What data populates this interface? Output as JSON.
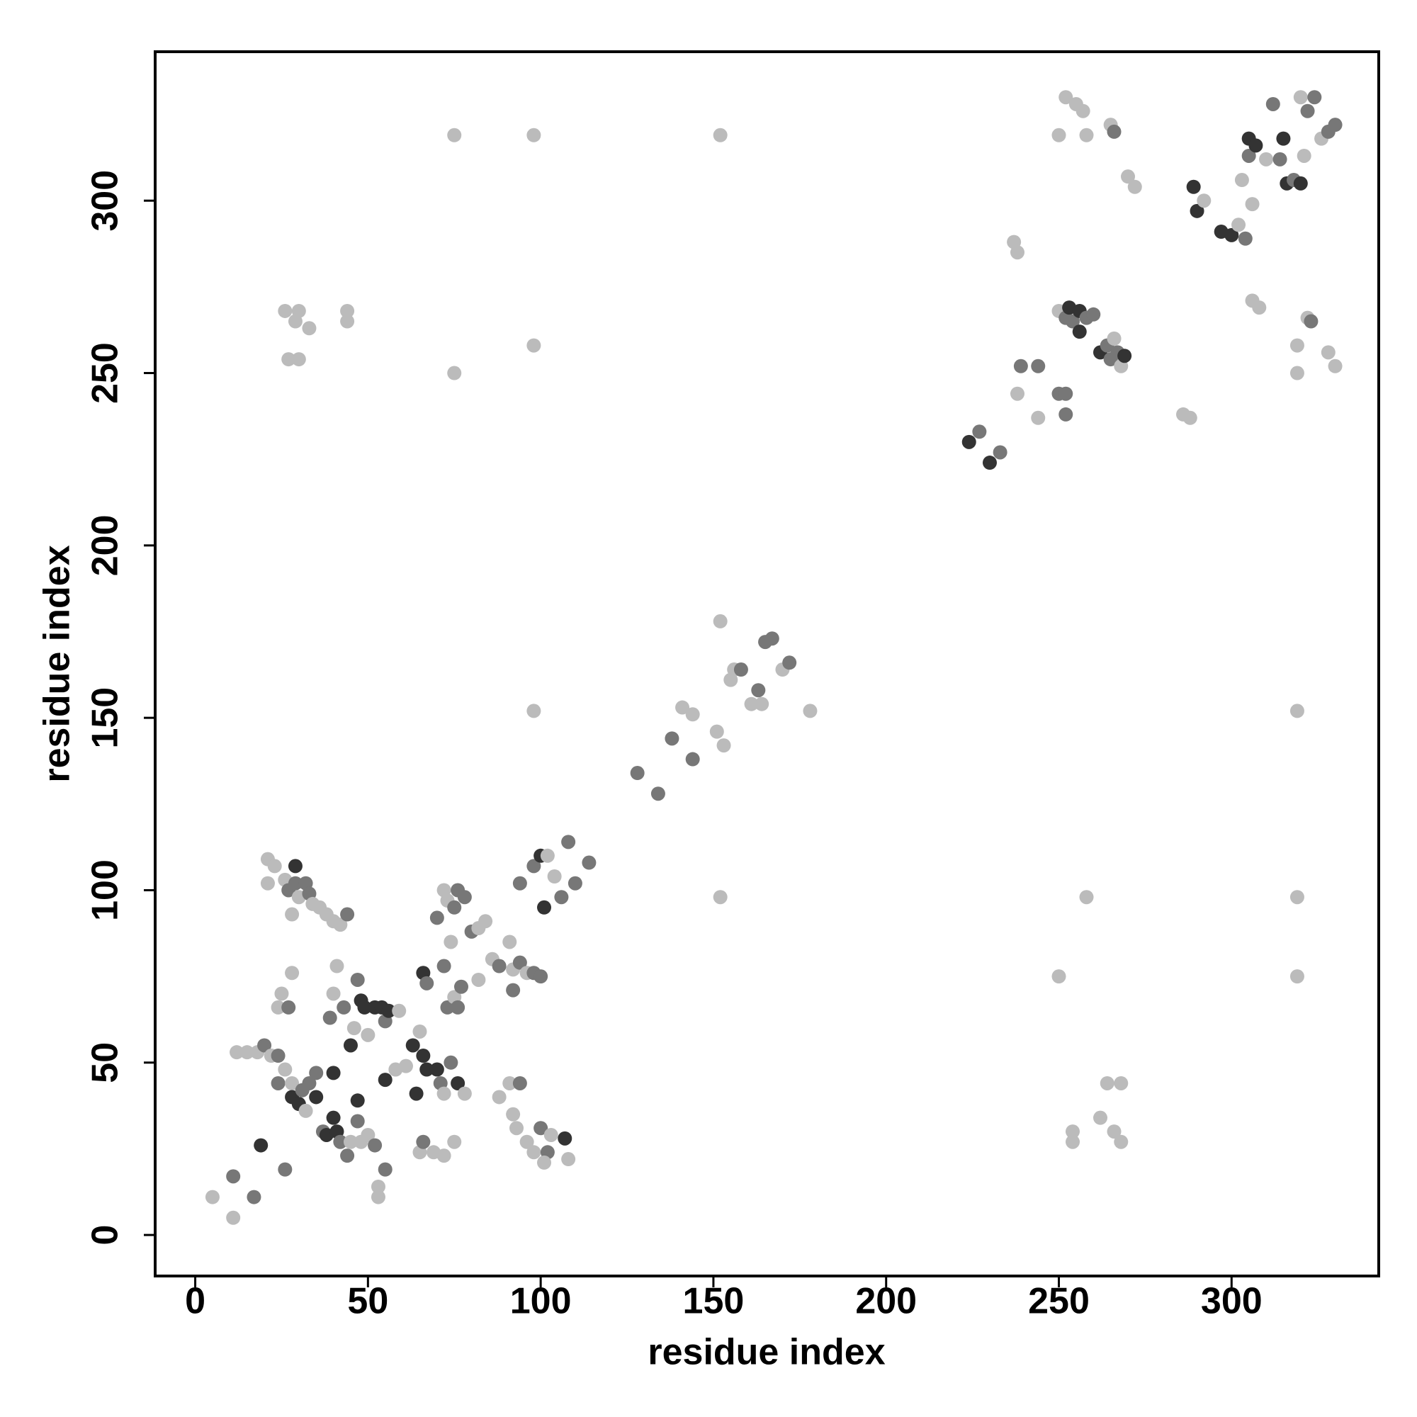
{
  "chart_data": {
    "type": "scatter",
    "x_label": "residue index",
    "y_label": "residue index",
    "xlim": [
      -11.6,
      342.6
    ],
    "ylim": [
      -11.9,
      343.2
    ],
    "xticks": [
      0,
      50,
      100,
      150,
      200,
      250,
      300
    ],
    "yticks": [
      0,
      50,
      100,
      150,
      200,
      250,
      300
    ],
    "x": [
      5,
      11,
      11,
      17,
      19,
      26,
      12,
      15,
      18,
      20,
      22,
      24,
      24,
      26,
      28,
      28,
      30,
      31,
      32,
      33,
      35,
      35,
      24,
      25,
      27,
      28,
      21,
      21,
      23,
      26,
      27,
      29,
      29,
      30,
      32,
      33,
      34,
      36,
      38,
      40,
      42,
      44,
      28,
      37,
      38,
      40,
      41,
      42,
      44,
      45,
      47,
      48,
      50,
      52,
      53,
      53,
      55,
      39,
      40,
      41,
      43,
      45,
      46,
      47,
      48,
      49,
      50,
      52,
      54,
      55,
      56,
      59,
      40,
      47,
      55,
      58,
      61,
      63,
      64,
      65,
      66,
      67,
      70,
      71,
      72,
      74,
      76,
      78,
      65,
      66,
      69,
      72,
      75,
      66,
      67,
      72,
      73,
      75,
      76,
      77,
      70,
      72,
      73,
      75,
      76,
      78,
      80,
      82,
      84,
      74,
      82,
      86,
      88,
      91,
      92,
      94,
      96,
      98,
      100,
      92,
      88,
      91,
      92,
      93,
      94,
      96,
      98,
      100,
      102,
      103,
      107,
      108,
      101,
      94,
      98,
      100,
      101,
      102,
      104,
      106,
      108,
      110,
      114,
      128,
      134,
      138,
      144,
      141,
      144,
      151,
      153,
      152,
      155,
      156,
      158,
      161,
      163,
      164,
      165,
      167,
      170,
      172,
      178,
      98,
      152,
      250,
      258,
      319,
      319,
      319,
      254,
      254,
      262,
      264,
      266,
      268,
      268,
      26,
      30,
      29,
      33,
      27,
      30,
      44,
      44,
      75,
      98,
      75,
      98,
      152,
      224,
      227,
      230,
      233,
      238,
      239,
      244,
      244,
      250,
      252,
      252,
      237,
      238,
      250,
      252,
      253,
      254,
      256,
      256,
      258,
      260,
      262,
      264,
      265,
      266,
      267,
      268,
      269,
      250,
      252,
      255,
      257,
      258,
      265,
      266,
      270,
      272,
      286,
      288,
      289,
      290,
      292,
      297,
      300,
      302,
      303,
      304,
      305,
      305,
      306,
      307,
      306,
      308,
      310,
      312,
      314,
      315,
      316,
      318,
      319,
      319,
      320,
      322,
      321,
      322,
      323,
      324,
      326,
      328,
      330,
      328,
      330,
      320
    ],
    "values": [
      11,
      5,
      17,
      11,
      26,
      19,
      53,
      53,
      53,
      55,
      52,
      52,
      44,
      48,
      44,
      40,
      38,
      42,
      36,
      44,
      47,
      40,
      66,
      70,
      66,
      76,
      109,
      102,
      107,
      103,
      100,
      107,
      102,
      98,
      102,
      99,
      96,
      95,
      93,
      91,
      90,
      93,
      93,
      30,
      29,
      34,
      30,
      27,
      23,
      27,
      33,
      27,
      29,
      26,
      14,
      11,
      19,
      63,
      70,
      78,
      66,
      55,
      60,
      74,
      68,
      66,
      58,
      66,
      66,
      62,
      65,
      65,
      47,
      39,
      45,
      48,
      49,
      55,
      41,
      59,
      52,
      48,
      48,
      44,
      41,
      50,
      44,
      41,
      24,
      27,
      24,
      23,
      27,
      76,
      73,
      78,
      66,
      69,
      66,
      72,
      92,
      100,
      97,
      95,
      100,
      98,
      88,
      89,
      91,
      85,
      74,
      80,
      78,
      85,
      77,
      79,
      76,
      76,
      75,
      71,
      40,
      44,
      35,
      31,
      44,
      27,
      24,
      31,
      24,
      29,
      28,
      22,
      21,
      102,
      107,
      110,
      95,
      110,
      104,
      98,
      114,
      102,
      108,
      134,
      128,
      144,
      138,
      153,
      151,
      146,
      142,
      178,
      161,
      164,
      164,
      154,
      158,
      154,
      172,
      173,
      164,
      166,
      152,
      152,
      98,
      75,
      98,
      98,
      75,
      152,
      30,
      27,
      34,
      44,
      30,
      44,
      27,
      268,
      268,
      265,
      263,
      254,
      254,
      268,
      265,
      250,
      258,
      319,
      319,
      319,
      230,
      233,
      224,
      227,
      244,
      252,
      237,
      252,
      244,
      244,
      238,
      288,
      285,
      268,
      266,
      269,
      265,
      268,
      262,
      266,
      267,
      256,
      258,
      254,
      260,
      256,
      252,
      255,
      319,
      330,
      328,
      326,
      319,
      322,
      320,
      307,
      304,
      238,
      237,
      304,
      297,
      300,
      291,
      290,
      293,
      306,
      289,
      318,
      313,
      299,
      316,
      271,
      269,
      312,
      328,
      312,
      318,
      305,
      306,
      258,
      250,
      330,
      326,
      313,
      266,
      265,
      330,
      318,
      320,
      322,
      256,
      252,
      305
    ],
    "colors": [
      "#bbb",
      "#bbb",
      "#777",
      "#777",
      "#333",
      "#777",
      "#bbb",
      "#bbb",
      "#bbb",
      "#777",
      "#bbb",
      "#777",
      "#777",
      "#bbb",
      "#bbb",
      "#333",
      "#333",
      "#777",
      "#bbb",
      "#777",
      "#777",
      "#333",
      "#bbb",
      "#bbb",
      "#777",
      "#bbb",
      "#bbb",
      "#bbb",
      "#bbb",
      "#bbb",
      "#777",
      "#333",
      "#777",
      "#bbb",
      "#777",
      "#777",
      "#bbb",
      "#bbb",
      "#bbb",
      "#bbb",
      "#bbb",
      "#777",
      "#bbb",
      "#777",
      "#333",
      "#333",
      "#333",
      "#777",
      "#777",
      "#bbb",
      "#777",
      "#bbb",
      "#bbb",
      "#777",
      "#bbb",
      "#bbb",
      "#777",
      "#777",
      "#bbb",
      "#bbb",
      "#777",
      "#333",
      "#bbb",
      "#777",
      "#333",
      "#333",
      "#bbb",
      "#333",
      "#333",
      "#777",
      "#333",
      "#bbb",
      "#333",
      "#333",
      "#333",
      "#bbb",
      "#bbb",
      "#333",
      "#333",
      "#bbb",
      "#333",
      "#333",
      "#333",
      "#777",
      "#bbb",
      "#777",
      "#333",
      "#bbb",
      "#bbb",
      "#777",
      "#bbb",
      "#bbb",
      "#bbb",
      "#333",
      "#777",
      "#777",
      "#777",
      "#bbb",
      "#777",
      "#777",
      "#777",
      "#bbb",
      "#bbb",
      "#777",
      "#777",
      "#777",
      "#777",
      "#bbb",
      "#bbb",
      "#bbb",
      "#bbb",
      "#bbb",
      "#777",
      "#bbb",
      "#bbb",
      "#777",
      "#bbb",
      "#777",
      "#777",
      "#777",
      "#bbb",
      "#bbb",
      "#bbb",
      "#bbb",
      "#777",
      "#bbb",
      "#bbb",
      "#777",
      "#777",
      "#bbb",
      "#333",
      "#bbb",
      "#bbb",
      "#777",
      "#777",
      "#333",
      "#333",
      "#bbb",
      "#bbb",
      "#777",
      "#777",
      "#777",
      "#777",
      "#777",
      "#777",
      "#777",
      "#777",
      "#bbb",
      "#bbb",
      "#bbb",
      "#bbb",
      "#bbb",
      "#bbb",
      "#bbb",
      "#777",
      "#bbb",
      "#777",
      "#bbb",
      "#777",
      "#777",
      "#bbb",
      "#777",
      "#bbb",
      "#bbb",
      "#bbb",
      "#bbb",
      "#bbb",
      "#bbb",
      "#bbb",
      "#bbb",
      "#bbb",
      "#bbb",
      "#bbb",
      "#bbb",
      "#bbb",
      "#bbb",
      "#bbb",
      "#bbb",
      "#bbb",
      "#bbb",
      "#bbb",
      "#bbb",
      "#bbb",
      "#bbb",
      "#bbb",
      "#bbb",
      "#bbb",
      "#bbb",
      "#bbb",
      "#bbb",
      "#333",
      "#777",
      "#333",
      "#777",
      "#bbb",
      "#777",
      "#bbb",
      "#777",
      "#777",
      "#777",
      "#777",
      "#bbb",
      "#bbb",
      "#bbb",
      "#777",
      "#333",
      "#777",
      "#333",
      "#333",
      "#777",
      "#777",
      "#333",
      "#777",
      "#777",
      "#bbb",
      "#777",
      "#bbb",
      "#333",
      "#bbb",
      "#bbb",
      "#bbb",
      "#bbb",
      "#bbb",
      "#bbb",
      "#777",
      "#bbb",
      "#bbb",
      "#bbb",
      "#bbb",
      "#333",
      "#333",
      "#bbb",
      "#333",
      "#333",
      "#bbb",
      "#bbb",
      "#777",
      "#333",
      "#777",
      "#bbb",
      "#333",
      "#bbb",
      "#bbb",
      "#bbb",
      "#777",
      "#777",
      "#333",
      "#333",
      "#777",
      "#bbb",
      "#bbb",
      "#bbb",
      "#777",
      "#bbb",
      "#bbb",
      "#777",
      "#777",
      "#bbb",
      "#777",
      "#777",
      "#bbb",
      "#bbb",
      "#333"
    ]
  }
}
